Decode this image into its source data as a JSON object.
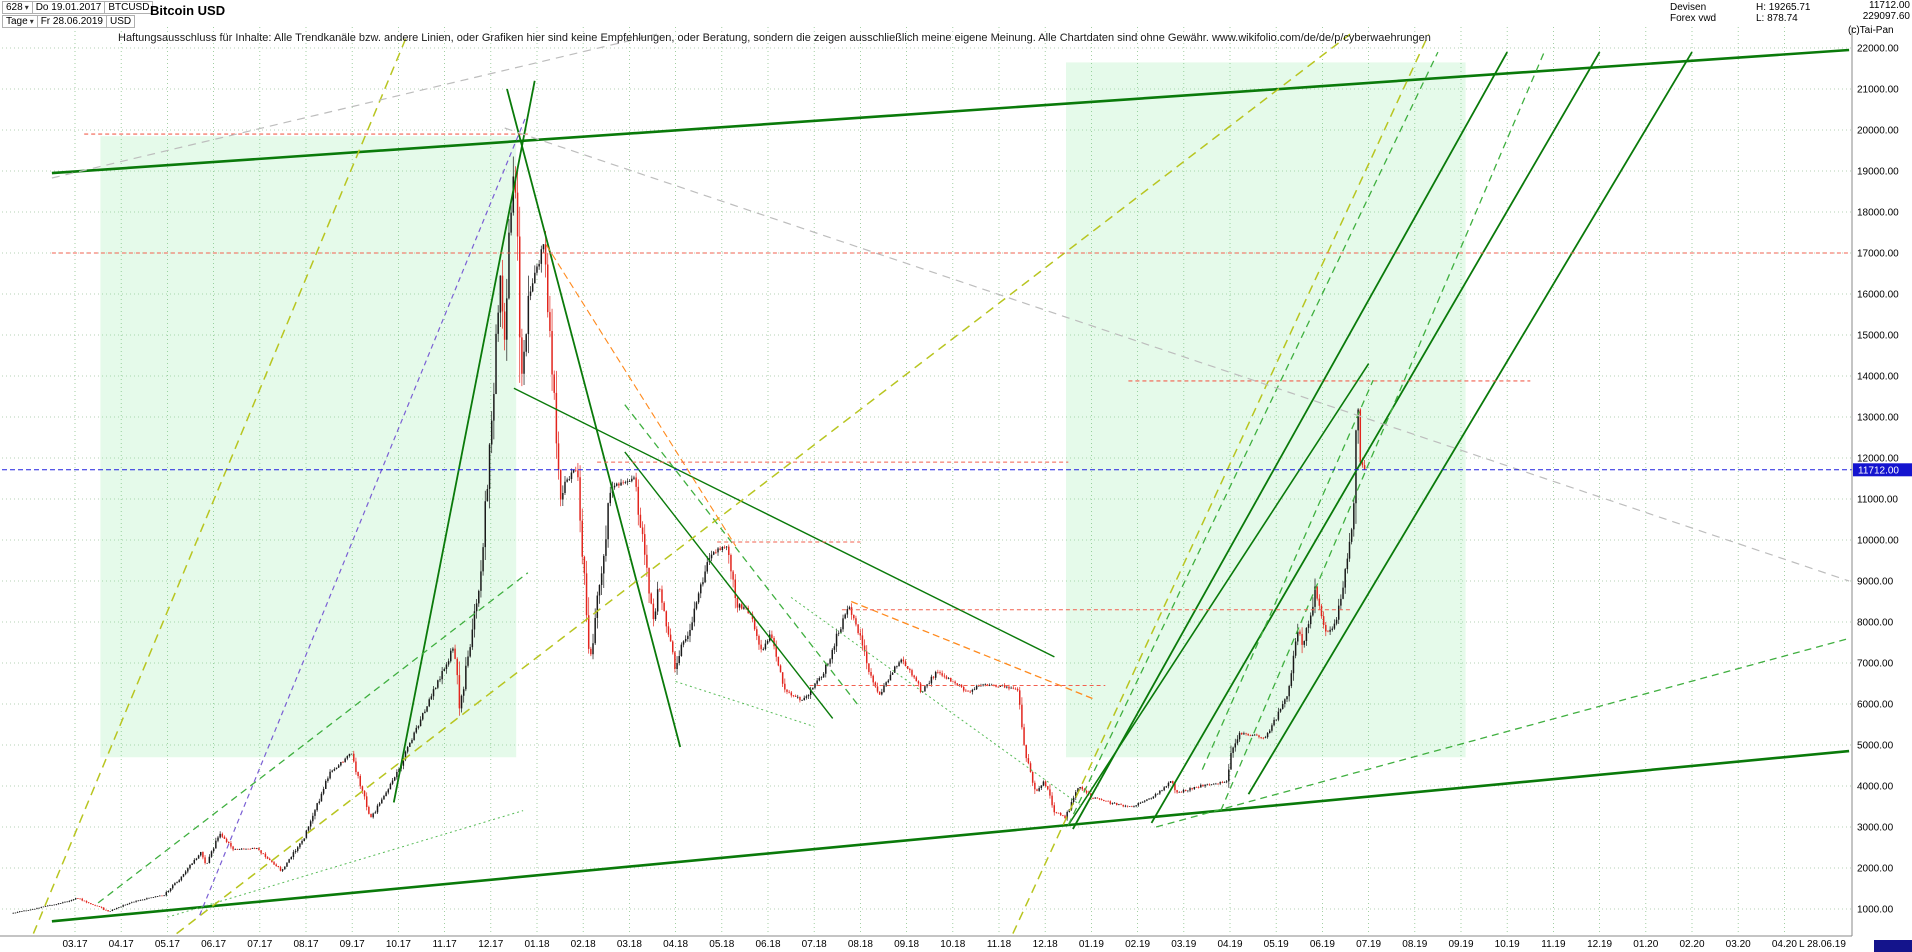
{
  "controls": {
    "bars_count": "628",
    "period": "Tage",
    "start_date": "Do 19.01.2017",
    "end_date": "Fr 28.06.2019",
    "symbol": "BTCUSD",
    "currency": "USD"
  },
  "title": "Bitcoin USD",
  "info": {
    "market": "Devisen",
    "feed": "Forex vwd",
    "high": "H: 19265.71",
    "low": "L: 878.74",
    "corner_line1": "11712.00",
    "corner_line2": "229097.60",
    "copyright": "(c)Tai-Pan"
  },
  "disclaimer": "Haftungsausschluss für Inhalte: Alle Trendkanäle bzw. andere Linien, oder Grafiken hier sind keine Empfehlungen, oder Beratung, sondern die zeigen ausschließlich meine eigene Meinung. Alle Chartdaten sind ohne Gewähr.  www.wikifolio.com/de/de/p/cyberwaehrungen",
  "axis": {
    "last_marker": "L  28.06.19"
  },
  "colors": {
    "up_candle": "#1a1a1a",
    "down_candle": "#e2251d",
    "last_price_line": "#2020e0",
    "price_tag_bg": "#1414cf",
    "channel_green": "#0a7a0a",
    "region_fill": "rgba(110,230,140,0.18)"
  },
  "chart_data": {
    "type": "candlestick",
    "symbol": "BTCUSD",
    "title": "Bitcoin USD",
    "timeframe": "daily",
    "bars_total": 628,
    "last_price": 11712.0,
    "last_price_label": "11712.00",
    "period_high": 19265.71,
    "period_low": 878.74,
    "ylim": [
      350,
      22450
    ],
    "y_ticks": [
      22000,
      21000,
      20000,
      19000,
      18000,
      17000,
      16000,
      15000,
      14000,
      13000,
      12000,
      11000,
      10000,
      9000,
      8000,
      7000,
      6000,
      5000,
      4000,
      3000,
      2000,
      1000
    ],
    "x_labels": [
      "03.17",
      "04.17",
      "05.17",
      "06.17",
      "07.17",
      "08.17",
      "09.17",
      "10.17",
      "11.17",
      "12.17",
      "01.18",
      "02.18",
      "03.18",
      "04.18",
      "05.18",
      "06.18",
      "07.18",
      "08.18",
      "09.18",
      "10.18",
      "11.18",
      "12.18",
      "01.19",
      "02.19",
      "03.19",
      "04.19",
      "05.19",
      "06.19",
      "07.19",
      "08.19",
      "09.19",
      "10.19",
      "11.19",
      "12.19",
      "01.20",
      "02.20",
      "03.20",
      "04.20"
    ],
    "data_start_m": -1.36,
    "data_end_m": 27.89,
    "keypoints": [
      [
        -1.36,
        900
      ],
      [
        -0.83,
        1010
      ],
      [
        -0.17,
        1180
      ],
      [
        0.07,
        1270
      ],
      [
        0.76,
        940
      ],
      [
        1.3,
        1190
      ],
      [
        1.95,
        1340
      ],
      [
        2.3,
        1760
      ],
      [
        2.76,
        2380
      ],
      [
        2.86,
        2050
      ],
      [
        3.16,
        2860
      ],
      [
        3.46,
        2450
      ],
      [
        3.95,
        2480
      ],
      [
        4.49,
        1940
      ],
      [
        5.0,
        2780
      ],
      [
        5.53,
        4300
      ],
      [
        6.0,
        4800
      ],
      [
        6.43,
        3200
      ],
      [
        7.0,
        4350
      ],
      [
        7.66,
        6000
      ],
      [
        8.23,
        7420
      ],
      [
        8.36,
        5900
      ],
      [
        8.82,
        9300
      ],
      [
        9.23,
        16200
      ],
      [
        9.3,
        14600
      ],
      [
        9.53,
        19500
      ],
      [
        9.69,
        13900
      ],
      [
        9.82,
        15800
      ],
      [
        10.16,
        17200
      ],
      [
        10.53,
        11200
      ],
      [
        10.89,
        11800
      ],
      [
        11.16,
        6950
      ],
      [
        11.63,
        11300
      ],
      [
        12.13,
        11500
      ],
      [
        12.56,
        7900
      ],
      [
        12.66,
        8900
      ],
      [
        13.0,
        6950
      ],
      [
        13.36,
        7950
      ],
      [
        13.76,
        9650
      ],
      [
        14.13,
        9850
      ],
      [
        14.33,
        8450
      ],
      [
        14.63,
        8250
      ],
      [
        14.89,
        7250
      ],
      [
        15.07,
        7700
      ],
      [
        15.39,
        6300
      ],
      [
        15.76,
        6100
      ],
      [
        16.0,
        6400
      ],
      [
        16.23,
        6750
      ],
      [
        16.76,
        8400
      ],
      [
        16.99,
        7750
      ],
      [
        17.2,
        6750
      ],
      [
        17.43,
        6200
      ],
      [
        17.89,
        7100
      ],
      [
        18.13,
        6750
      ],
      [
        18.36,
        6300
      ],
      [
        18.66,
        6750
      ],
      [
        19.03,
        6550
      ],
      [
        19.33,
        6300
      ],
      [
        19.69,
        6480
      ],
      [
        20.1,
        6420
      ],
      [
        20.43,
        6350
      ],
      [
        20.59,
        4900
      ],
      [
        20.79,
        3800
      ],
      [
        21.0,
        4150
      ],
      [
        21.2,
        3400
      ],
      [
        21.46,
        3230
      ],
      [
        21.76,
        4000
      ],
      [
        22.0,
        3750
      ],
      [
        22.3,
        3620
      ],
      [
        22.89,
        3480
      ],
      [
        23.23,
        3660
      ],
      [
        23.56,
        3900
      ],
      [
        23.76,
        4120
      ],
      [
        23.86,
        3830
      ],
      [
        24.49,
        4030
      ],
      [
        24.95,
        4100
      ],
      [
        25.03,
        4880
      ],
      [
        25.23,
        5290
      ],
      [
        25.79,
        5180
      ],
      [
        26.07,
        5750
      ],
      [
        26.3,
        6350
      ],
      [
        26.49,
        7950
      ],
      [
        26.59,
        7300
      ],
      [
        26.86,
        8750
      ],
      [
        26.99,
        8300
      ],
      [
        27.1,
        7700
      ],
      [
        27.3,
        8000
      ],
      [
        27.49,
        8950
      ],
      [
        27.69,
        10700
      ],
      [
        27.79,
        13450
      ],
      [
        27.84,
        11900
      ],
      [
        27.89,
        11712
      ]
    ],
    "regions": [
      {
        "m1": 0.55,
        "p1": 4700,
        "m2": 9.55,
        "p2": 19850,
        "fill": "rgba(110,230,140,0.18)"
      },
      {
        "m1": 21.45,
        "p1": 4700,
        "m2": 30.1,
        "p2": 21650,
        "fill": "rgba(110,230,140,0.18)"
      }
    ],
    "annotations": [
      {
        "m1": -0.5,
        "p1": 18950,
        "m2": 38.4,
        "p2": 21950,
        "c": "#0a7a0a",
        "w": 2.6,
        "d": ""
      },
      {
        "m1": -0.5,
        "p1": 700,
        "m2": 38.4,
        "p2": 4850,
        "c": "#0a7a0a",
        "w": 2.6,
        "d": ""
      },
      {
        "m1": 6.9,
        "p1": 3600,
        "m2": 9.95,
        "p2": 21200,
        "c": "#0a7a0a",
        "w": 1.8,
        "d": ""
      },
      {
        "m1": 9.35,
        "p1": 21000,
        "m2": 13.1,
        "p2": 4950,
        "c": "#0a7a0a",
        "w": 1.8,
        "d": ""
      },
      {
        "m1": 9.5,
        "p1": 13700,
        "m2": 21.2,
        "p2": 7150,
        "c": "#0a7a0a",
        "w": 1.4,
        "d": ""
      },
      {
        "m1": 11.9,
        "p1": 12150,
        "m2": 16.4,
        "p2": 5650,
        "c": "#0a7a0a",
        "w": 1.4,
        "d": ""
      },
      {
        "m1": 21.5,
        "p1": 3050,
        "m2": 28.0,
        "p2": 14300,
        "c": "#0a7a0a",
        "w": 1.6,
        "d": ""
      },
      {
        "m1": 21.6,
        "p1": 2950,
        "m2": 31.0,
        "p2": 21900,
        "c": "#0a7a0a",
        "w": 1.8,
        "d": ""
      },
      {
        "m1": 23.3,
        "p1": 3100,
        "m2": 33.0,
        "p2": 21900,
        "c": "#0a7a0a",
        "w": 1.8,
        "d": ""
      },
      {
        "m1": 25.4,
        "p1": 3800,
        "m2": 35.0,
        "p2": 21900,
        "c": "#0a7a0a",
        "w": 1.8,
        "d": ""
      },
      {
        "m1": 0.5,
        "p1": 1150,
        "m2": 9.8,
        "p2": 9200,
        "c": "#3faf3f",
        "w": 1.3,
        "d": "7 5"
      },
      {
        "m1": 11.9,
        "p1": 13300,
        "m2": 17.0,
        "p2": 5900,
        "c": "#3faf3f",
        "w": 1.3,
        "d": "7 5"
      },
      {
        "m1": 21.5,
        "p1": 3050,
        "m2": 29.5,
        "p2": 21900,
        "c": "#3faf3f",
        "w": 1.3,
        "d": "7 5"
      },
      {
        "m1": 24.8,
        "p1": 3400,
        "m2": 31.8,
        "p2": 21900,
        "c": "#3faf3f",
        "w": 1.3,
        "d": "7 5"
      },
      {
        "m1": 23.4,
        "p1": 3000,
        "m2": 38.4,
        "p2": 7600,
        "c": "#3faf3f",
        "w": 1.3,
        "d": "7 5"
      },
      {
        "m1": 24.4,
        "p1": 4400,
        "m2": 28.1,
        "p2": 13900,
        "c": "#3faf3f",
        "w": 1.3,
        "d": "7 5"
      },
      {
        "m1": 13.0,
        "p1": 6550,
        "m2": 16.0,
        "p2": 5450,
        "c": "#58bc58",
        "w": 1.0,
        "d": "2 3"
      },
      {
        "m1": 15.5,
        "p1": 8600,
        "m2": 21.8,
        "p2": 3500,
        "c": "#58bc58",
        "w": 1.0,
        "d": "2 3"
      },
      {
        "m1": 2.0,
        "p1": 800,
        "m2": 9.7,
        "p2": 3400,
        "c": "#58bc58",
        "w": 1.0,
        "d": "2 3"
      },
      {
        "m1": -0.9,
        "p1": 400,
        "m2": 7.2,
        "p2": 22340,
        "c": "#b8c520",
        "w": 1.5,
        "d": "9 6"
      },
      {
        "m1": 2.2,
        "p1": 400,
        "m2": 27.6,
        "p2": 22340,
        "c": "#b8c520",
        "w": 1.5,
        "d": "9 6"
      },
      {
        "m1": 20.3,
        "p1": 400,
        "m2": 29.3,
        "p2": 22340,
        "c": "#b8c520",
        "w": 1.5,
        "d": "9 6"
      },
      {
        "m1": 16.8,
        "p1": 8500,
        "m2": 22.1,
        "p2": 6100,
        "c": "#ff8a1e",
        "w": 1.3,
        "d": "7 4"
      },
      {
        "m1": 10.2,
        "p1": 17200,
        "m2": 14.3,
        "p2": 9850,
        "c": "#ff8a1e",
        "w": 1.1,
        "d": "7 4"
      },
      {
        "m1": 0.2,
        "p1": 19900,
        "m2": 9.8,
        "p2": 19900,
        "c": "#f2604f",
        "w": 1.1,
        "d": "4 3"
      },
      {
        "m1": -0.5,
        "p1": 17000,
        "m2": 38.4,
        "p2": 17000,
        "c": "#f2604f",
        "w": 1.1,
        "d": "4 3"
      },
      {
        "m1": 22.8,
        "p1": 13880,
        "m2": 31.5,
        "p2": 13880,
        "c": "#f2604f",
        "w": 1.1,
        "d": "4 3"
      },
      {
        "m1": 11.3,
        "p1": 11900,
        "m2": 21.5,
        "p2": 11900,
        "c": "#f2604f",
        "w": 1.0,
        "d": "4 3"
      },
      {
        "m1": 13.9,
        "p1": 9950,
        "m2": 17.0,
        "p2": 9950,
        "c": "#f2604f",
        "w": 1.0,
        "d": "4 3"
      },
      {
        "m1": 16.6,
        "p1": 8300,
        "m2": 27.6,
        "p2": 8300,
        "c": "#f2604f",
        "w": 1.0,
        "d": "4 3"
      },
      {
        "m1": 15.9,
        "p1": 6450,
        "m2": 22.3,
        "p2": 6450,
        "c": "#f2604f",
        "w": 1.0,
        "d": "4 3"
      },
      {
        "m1": -0.5,
        "p1": 18830,
        "m2": 12.6,
        "p2": 22340,
        "c": "#bdbdbd",
        "w": 1.2,
        "d": "8 6"
      },
      {
        "m1": 9.3,
        "p1": 20050,
        "m2": 38.4,
        "p2": 9000,
        "c": "#bdbdbd",
        "w": 1.2,
        "d": "8 6"
      },
      {
        "m1": 2.7,
        "p1": 850,
        "m2": 9.75,
        "p2": 20300,
        "c": "#7a5fd4",
        "w": 1.2,
        "d": "5 4"
      }
    ]
  }
}
